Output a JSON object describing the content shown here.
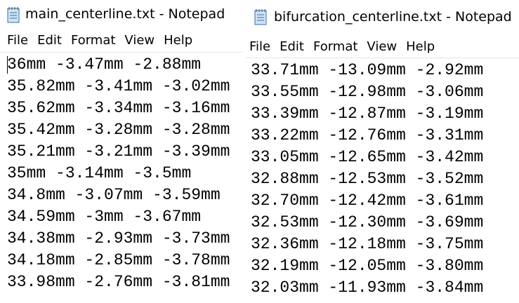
{
  "windows": [
    {
      "title": "main_centerline.txt - Notepad",
      "menu": [
        "File",
        "Edit",
        "Format",
        "View",
        "Help"
      ],
      "lines": [
        "36mm -3.47mm -2.88mm",
        "35.82mm -3.41mm -3.02mm",
        "35.62mm -3.34mm -3.16mm",
        "35.42mm -3.28mm -3.28mm",
        "35.21mm -3.21mm -3.39mm",
        "35mm -3.14mm -3.5mm",
        "34.8mm -3.07mm -3.59mm",
        "34.59mm -3mm -3.67mm",
        "34.38mm -2.93mm -3.73mm",
        "34.18mm -2.85mm -3.78mm",
        "33.98mm -2.76mm -3.81mm"
      ]
    },
    {
      "title": "bifurcation_centerline.txt - Notepad",
      "menu": [
        "File",
        "Edit",
        "Format",
        "View",
        "Help"
      ],
      "lines": [
        "33.71mm -13.09mm -2.92mm",
        "33.55mm -12.98mm -3.06mm",
        "33.39mm -12.87mm -3.19mm",
        "33.22mm -12.76mm -3.31mm",
        "33.05mm -12.65mm -3.42mm",
        "32.88mm -12.53mm -3.52mm",
        "32.70mm -12.42mm -3.61mm",
        "32.53mm -12.30mm -3.69mm",
        "32.36mm -12.18mm -3.75mm",
        "32.19mm -12.05mm -3.80mm",
        "32.03mm -11.93mm -3.84mm"
      ]
    }
  ]
}
